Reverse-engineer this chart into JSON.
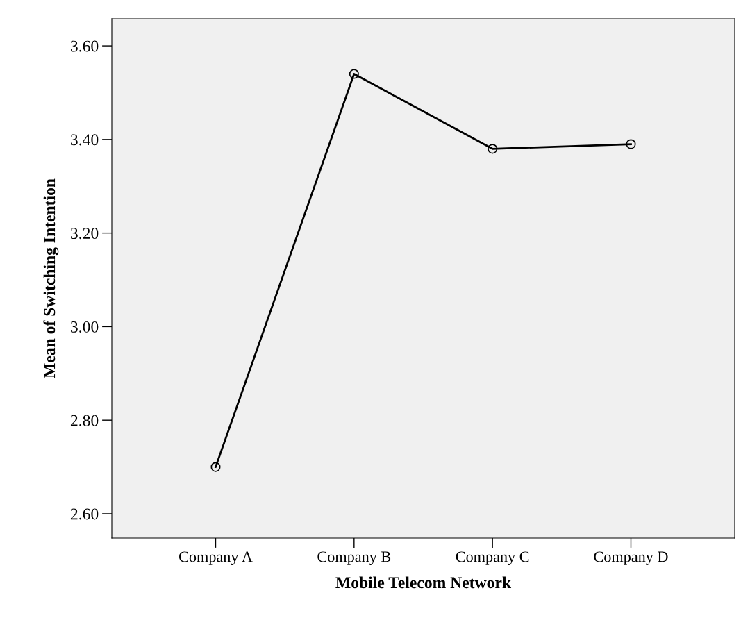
{
  "chart_data": {
    "type": "line",
    "xlabel": "Mobile Telecom Network",
    "ylabel": "Mean of Switching Intention",
    "categories": [
      "Company A",
      "Company B",
      "Company C",
      "Company D"
    ],
    "series": [
      {
        "color": "#000000",
        "values": [
          2.7,
          3.54,
          3.38,
          3.39
        ]
      }
    ],
    "ylim": [
      2.548,
      3.658
    ],
    "yticks": [
      {
        "value": 2.6,
        "label": "2.60"
      },
      {
        "value": 2.8,
        "label": "2.80"
      },
      {
        "value": 3.0,
        "label": "3.00"
      },
      {
        "value": 3.2,
        "label": "3.20"
      },
      {
        "value": 3.4,
        "label": "3.40"
      },
      {
        "value": 3.6,
        "label": "3.60"
      }
    ],
    "marker": "circle",
    "line_style": "solid",
    "grid": false,
    "legend": false
  }
}
